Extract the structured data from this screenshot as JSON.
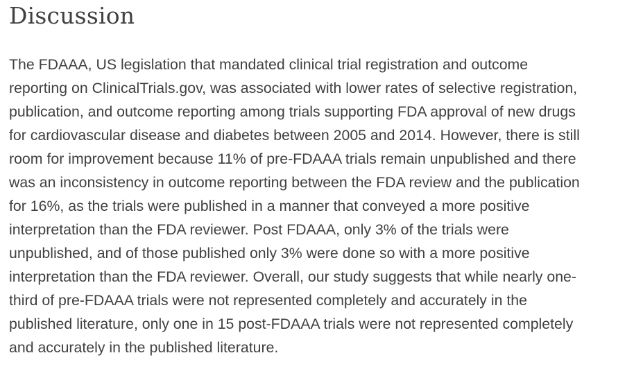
{
  "section": {
    "heading": "Discussion",
    "paragraph_lines": [
      "The FDAAA, US legislation that mandated clinical trial registration and outcome",
      "reporting on ClinicalTrials.gov, was associated with lower rates of selective registration,",
      "publication, and outcome reporting among trials supporting FDA approval of new drugs",
      "for cardiovascular disease and diabetes between 2005 and 2014. However, there is still",
      "room for improvement because 11% of pre-FDAAA trials remain unpublished and there",
      "was an inconsistency in outcome reporting between the FDA review and the publication",
      "for 16%, as the trials were published in a manner that conveyed a more positive",
      "interpretation than the FDA reviewer. Post FDAAA, only 3% of the trials were",
      "unpublished, and of those published only 3% were done so with a more positive",
      "interpretation than the FDA reviewer. Overall, our study suggests that while nearly one-",
      "third of pre-FDAAA trials were not represented completely and accurately in the",
      "published literature, only one in 15 post-FDAAA trials were not represented completely",
      "and accurately in the published literature."
    ]
  },
  "colors": {
    "text": "#404040",
    "background": "#ffffff"
  }
}
